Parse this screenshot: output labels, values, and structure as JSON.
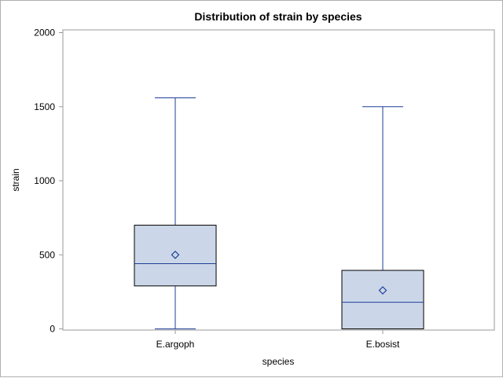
{
  "chart_data": {
    "type": "box",
    "title": "Distribution of strain by species",
    "xlabel": "species",
    "ylabel": "strain",
    "ylim": [
      0,
      2000
    ],
    "yticks": [
      0,
      500,
      1000,
      1500,
      2000
    ],
    "categories": [
      "E.argoph",
      "E.bosist"
    ],
    "boxes": [
      {
        "category": "E.argoph",
        "min": 0,
        "q1": 290,
        "median": 440,
        "q3": 700,
        "max": 1560,
        "mean": 500
      },
      {
        "category": "E.bosist",
        "min": 0,
        "q1": 0,
        "median": 180,
        "q3": 395,
        "max": 1500,
        "mean": 260
      }
    ],
    "colors": {
      "box_fill": "#cbd7e8",
      "line": "#1f3e99",
      "axis": "#9a9a9a",
      "box_edge": "#000000"
    }
  }
}
